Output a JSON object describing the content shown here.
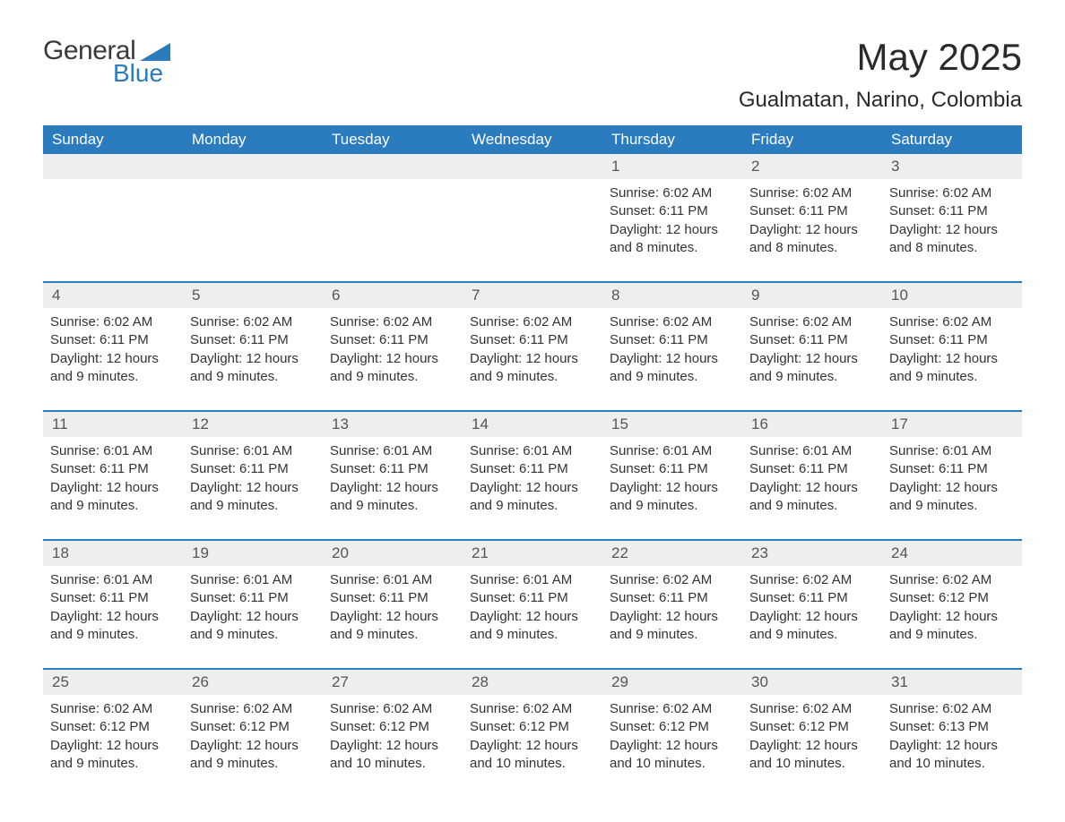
{
  "logo": {
    "general": "General",
    "blue": "Blue",
    "tri_color": "#2b7bbf"
  },
  "title": "May 2025",
  "location": "Gualmatan, Narino, Colombia",
  "colors": {
    "header_bg": "#2b7bbf",
    "header_text": "#ffffff",
    "daynum_bg": "#eeeeee",
    "daynum_text": "#555555",
    "body_text": "#333333",
    "week_border": "#2b7bbf",
    "page_bg": "#ffffff"
  },
  "weekdays": [
    "Sunday",
    "Monday",
    "Tuesday",
    "Wednesday",
    "Thursday",
    "Friday",
    "Saturday"
  ],
  "weeks": [
    [
      null,
      null,
      null,
      null,
      {
        "n": "1",
        "sunrise": "6:02 AM",
        "sunset": "6:11 PM",
        "daylight": "12 hours and 8 minutes."
      },
      {
        "n": "2",
        "sunrise": "6:02 AM",
        "sunset": "6:11 PM",
        "daylight": "12 hours and 8 minutes."
      },
      {
        "n": "3",
        "sunrise": "6:02 AM",
        "sunset": "6:11 PM",
        "daylight": "12 hours and 8 minutes."
      }
    ],
    [
      {
        "n": "4",
        "sunrise": "6:02 AM",
        "sunset": "6:11 PM",
        "daylight": "12 hours and 9 minutes."
      },
      {
        "n": "5",
        "sunrise": "6:02 AM",
        "sunset": "6:11 PM",
        "daylight": "12 hours and 9 minutes."
      },
      {
        "n": "6",
        "sunrise": "6:02 AM",
        "sunset": "6:11 PM",
        "daylight": "12 hours and 9 minutes."
      },
      {
        "n": "7",
        "sunrise": "6:02 AM",
        "sunset": "6:11 PM",
        "daylight": "12 hours and 9 minutes."
      },
      {
        "n": "8",
        "sunrise": "6:02 AM",
        "sunset": "6:11 PM",
        "daylight": "12 hours and 9 minutes."
      },
      {
        "n": "9",
        "sunrise": "6:02 AM",
        "sunset": "6:11 PM",
        "daylight": "12 hours and 9 minutes."
      },
      {
        "n": "10",
        "sunrise": "6:02 AM",
        "sunset": "6:11 PM",
        "daylight": "12 hours and 9 minutes."
      }
    ],
    [
      {
        "n": "11",
        "sunrise": "6:01 AM",
        "sunset": "6:11 PM",
        "daylight": "12 hours and 9 minutes."
      },
      {
        "n": "12",
        "sunrise": "6:01 AM",
        "sunset": "6:11 PM",
        "daylight": "12 hours and 9 minutes."
      },
      {
        "n": "13",
        "sunrise": "6:01 AM",
        "sunset": "6:11 PM",
        "daylight": "12 hours and 9 minutes."
      },
      {
        "n": "14",
        "sunrise": "6:01 AM",
        "sunset": "6:11 PM",
        "daylight": "12 hours and 9 minutes."
      },
      {
        "n": "15",
        "sunrise": "6:01 AM",
        "sunset": "6:11 PM",
        "daylight": "12 hours and 9 minutes."
      },
      {
        "n": "16",
        "sunrise": "6:01 AM",
        "sunset": "6:11 PM",
        "daylight": "12 hours and 9 minutes."
      },
      {
        "n": "17",
        "sunrise": "6:01 AM",
        "sunset": "6:11 PM",
        "daylight": "12 hours and 9 minutes."
      }
    ],
    [
      {
        "n": "18",
        "sunrise": "6:01 AM",
        "sunset": "6:11 PM",
        "daylight": "12 hours and 9 minutes."
      },
      {
        "n": "19",
        "sunrise": "6:01 AM",
        "sunset": "6:11 PM",
        "daylight": "12 hours and 9 minutes."
      },
      {
        "n": "20",
        "sunrise": "6:01 AM",
        "sunset": "6:11 PM",
        "daylight": "12 hours and 9 minutes."
      },
      {
        "n": "21",
        "sunrise": "6:01 AM",
        "sunset": "6:11 PM",
        "daylight": "12 hours and 9 minutes."
      },
      {
        "n": "22",
        "sunrise": "6:02 AM",
        "sunset": "6:11 PM",
        "daylight": "12 hours and 9 minutes."
      },
      {
        "n": "23",
        "sunrise": "6:02 AM",
        "sunset": "6:11 PM",
        "daylight": "12 hours and 9 minutes."
      },
      {
        "n": "24",
        "sunrise": "6:02 AM",
        "sunset": "6:12 PM",
        "daylight": "12 hours and 9 minutes."
      }
    ],
    [
      {
        "n": "25",
        "sunrise": "6:02 AM",
        "sunset": "6:12 PM",
        "daylight": "12 hours and 9 minutes."
      },
      {
        "n": "26",
        "sunrise": "6:02 AM",
        "sunset": "6:12 PM",
        "daylight": "12 hours and 9 minutes."
      },
      {
        "n": "27",
        "sunrise": "6:02 AM",
        "sunset": "6:12 PM",
        "daylight": "12 hours and 10 minutes."
      },
      {
        "n": "28",
        "sunrise": "6:02 AM",
        "sunset": "6:12 PM",
        "daylight": "12 hours and 10 minutes."
      },
      {
        "n": "29",
        "sunrise": "6:02 AM",
        "sunset": "6:12 PM",
        "daylight": "12 hours and 10 minutes."
      },
      {
        "n": "30",
        "sunrise": "6:02 AM",
        "sunset": "6:12 PM",
        "daylight": "12 hours and 10 minutes."
      },
      {
        "n": "31",
        "sunrise": "6:02 AM",
        "sunset": "6:13 PM",
        "daylight": "12 hours and 10 minutes."
      }
    ]
  ],
  "labels": {
    "sunrise": "Sunrise: ",
    "sunset": "Sunset: ",
    "daylight": "Daylight: "
  }
}
